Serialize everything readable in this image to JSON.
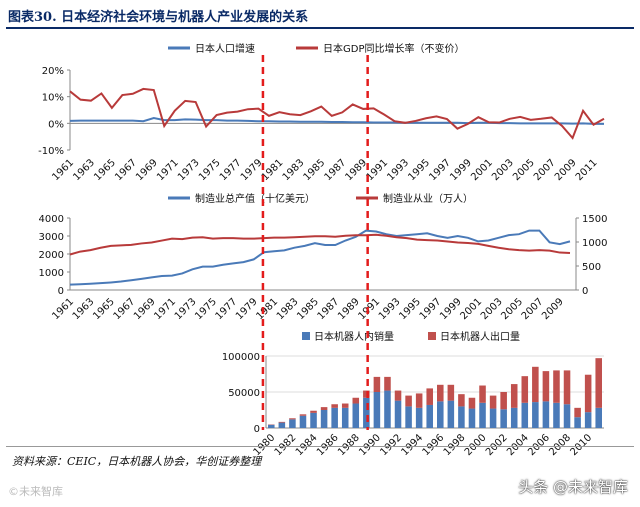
{
  "title": "图表30.  日本经济社会环境与机器人产业发展的关系",
  "source": "资料来源：CEIC，日本机器人协会，华创证券整理",
  "watermark_left": "©未来智库",
  "watermark_right": "头条 @未来智库",
  "colors": {
    "blue": "#4a7ab8",
    "red": "#b83a3a",
    "redbar": "#c0504d",
    "divider": "#e31c1c",
    "title": "#0a2a66"
  },
  "chart_data": [
    {
      "type": "line",
      "legend_position": "top",
      "x": [
        1961,
        1962,
        1963,
        1964,
        1965,
        1966,
        1967,
        1968,
        1969,
        1970,
        1971,
        1972,
        1973,
        1974,
        1975,
        1976,
        1977,
        1978,
        1979,
        1980,
        1981,
        1982,
        1983,
        1984,
        1985,
        1986,
        1987,
        1988,
        1989,
        1990,
        1991,
        1992,
        1993,
        1994,
        1995,
        1996,
        1997,
        1998,
        1999,
        2000,
        2001,
        2002,
        2003,
        2004,
        2005,
        2006,
        2007,
        2008,
        2009,
        2010,
        2011,
        2012
      ],
      "x_tick_labels": [
        "1961",
        "1963",
        "1965",
        "1967",
        "1969",
        "1971",
        "1973",
        "1975",
        "1977",
        "1979",
        "1981",
        "1983",
        "1985",
        "1987",
        "1989",
        "1991",
        "1993",
        "1995",
        "1997",
        "1999",
        "2001",
        "2003",
        "2005",
        "2007",
        "2009",
        "2011"
      ],
      "y_ticks": [
        "20%",
        "10%",
        "0%",
        "-10%"
      ],
      "ylim": [
        -10,
        20
      ],
      "series": [
        {
          "name": "日本人口增速",
          "color": "#4a7ab8",
          "values": [
            0.9,
            1.0,
            1.0,
            1.0,
            1.0,
            1.0,
            1.0,
            0.8,
            2.0,
            1.2,
            1.2,
            1.5,
            1.4,
            1.2,
            1.2,
            1.0,
            1.0,
            0.9,
            0.8,
            0.8,
            0.7,
            0.7,
            0.6,
            0.6,
            0.6,
            0.5,
            0.5,
            0.4,
            0.4,
            0.3,
            0.3,
            0.3,
            0.2,
            0.2,
            0.2,
            0.2,
            0.2,
            0.2,
            0.1,
            0.2,
            0.2,
            0.1,
            0.1,
            0.0,
            0.0,
            0.0,
            0.0,
            0.0,
            -0.1,
            0.0,
            -0.2,
            -0.2
          ]
        },
        {
          "name": "日本GDP同比增长率（不变价）",
          "color": "#b83a3a",
          "values": [
            12.0,
            8.9,
            8.5,
            11.2,
            5.8,
            10.6,
            11.1,
            12.9,
            12.5,
            -1.0,
            4.7,
            8.4,
            8.0,
            -1.2,
            3.1,
            4.0,
            4.4,
            5.3,
            5.5,
            2.8,
            4.2,
            3.4,
            3.1,
            4.5,
            6.3,
            2.8,
            4.1,
            7.1,
            5.4,
            5.6,
            3.3,
            0.8,
            0.2,
            0.9,
            1.9,
            2.6,
            1.6,
            -2.0,
            -0.2,
            2.3,
            0.4,
            0.3,
            1.7,
            2.4,
            1.3,
            1.7,
            2.2,
            -1.0,
            -5.5,
            4.7,
            -0.5,
            1.7
          ]
        }
      ]
    },
    {
      "type": "line",
      "legend_position": "top",
      "x": [
        1961,
        1962,
        1963,
        1964,
        1965,
        1966,
        1967,
        1968,
        1969,
        1970,
        1971,
        1972,
        1973,
        1974,
        1975,
        1976,
        1977,
        1978,
        1979,
        1980,
        1981,
        1982,
        1983,
        1984,
        1985,
        1986,
        1987,
        1988,
        1989,
        1990,
        1991,
        1992,
        1993,
        1994,
        1995,
        1996,
        1997,
        1998,
        1999,
        2000,
        2001,
        2002,
        2003,
        2004,
        2005,
        2006,
        2007,
        2008,
        2009,
        2010
      ],
      "x_tick_labels": [
        "1961",
        "1963",
        "1965",
        "1967",
        "1969",
        "1971",
        "1973",
        "1975",
        "1977",
        "1979",
        "1981",
        "1983",
        "1985",
        "1987",
        "1989",
        "1991",
        "1993",
        "1995",
        "1997",
        "1999",
        "2001",
        "2003",
        "2005",
        "2007",
        "2009"
      ],
      "y_left_ticks": [
        "4000",
        "3000",
        "2000",
        "1000",
        "0"
      ],
      "y_right_ticks": [
        "1500",
        "1000",
        "500",
        "0"
      ],
      "ylim_left": [
        0,
        4000
      ],
      "ylim_right": [
        0,
        1500
      ],
      "series": [
        {
          "name": "制造业总产值（十亿美元）",
          "axis": "left",
          "color": "#4a7ab8",
          "values": [
            300,
            320,
            350,
            380,
            420,
            470,
            540,
            620,
            700,
            780,
            800,
            920,
            1150,
            1300,
            1300,
            1400,
            1480,
            1550,
            1700,
            2100,
            2150,
            2200,
            2350,
            2450,
            2600,
            2500,
            2500,
            2750,
            2950,
            3300,
            3250,
            3100,
            3000,
            3050,
            3100,
            3150,
            3000,
            2900,
            3000,
            2900,
            2700,
            2750,
            2900,
            3050,
            3100,
            3300,
            3300,
            2650,
            2550,
            2700
          ]
        },
        {
          "name": "制造业从业（万人）",
          "axis": "right",
          "color": "#b83a3a",
          "values": [
            740,
            800,
            830,
            880,
            920,
            930,
            940,
            970,
            990,
            1030,
            1070,
            1060,
            1090,
            1100,
            1070,
            1080,
            1080,
            1070,
            1070,
            1080,
            1090,
            1090,
            1100,
            1110,
            1120,
            1120,
            1110,
            1130,
            1140,
            1140,
            1150,
            1130,
            1100,
            1080,
            1050,
            1040,
            1030,
            1010,
            990,
            980,
            960,
            920,
            880,
            850,
            830,
            820,
            830,
            820,
            780,
            770
          ]
        }
      ]
    },
    {
      "type": "bar",
      "stacked": true,
      "legend_position": "top",
      "categories": [
        1980,
        1981,
        1982,
        1983,
        1984,
        1985,
        1986,
        1987,
        1988,
        1989,
        1990,
        1991,
        1992,
        1993,
        1994,
        1995,
        1996,
        1997,
        1998,
        1999,
        2000,
        2001,
        2002,
        2003,
        2004,
        2005,
        2006,
        2007,
        2008,
        2009,
        2010,
        2011
      ],
      "x_tick_labels": [
        "1980",
        "1982",
        "1984",
        "1986",
        "1988",
        "1990",
        "1992",
        "1994",
        "1996",
        "1998",
        "2000",
        "2002",
        "2004",
        "2006",
        "2008",
        "2010"
      ],
      "y_ticks": [
        "100000",
        "50000",
        "0"
      ],
      "ylim": [
        0,
        100000
      ],
      "series": [
        {
          "name": "日本机器人内销量",
          "color": "#4a7ab8",
          "values": [
            4500,
            7500,
            12000,
            17000,
            21000,
            25000,
            28000,
            28000,
            34000,
            42000,
            50000,
            52000,
            38000,
            30000,
            28000,
            32000,
            37000,
            38000,
            30000,
            27000,
            35000,
            27000,
            26000,
            28000,
            35000,
            36000,
            37000,
            35000,
            33000,
            15000,
            22000,
            28000
          ]
        },
        {
          "name": "日本机器人出口量",
          "color": "#c0504d",
          "values": [
            500,
            1000,
            1500,
            2000,
            3000,
            4000,
            5000,
            6000,
            8000,
            10000,
            21000,
            19000,
            14000,
            15000,
            20000,
            23000,
            23000,
            22000,
            17000,
            15000,
            24000,
            18000,
            24000,
            33000,
            37000,
            49000,
            42000,
            45000,
            47000,
            13000,
            52000,
            69000
          ]
        }
      ]
    }
  ]
}
